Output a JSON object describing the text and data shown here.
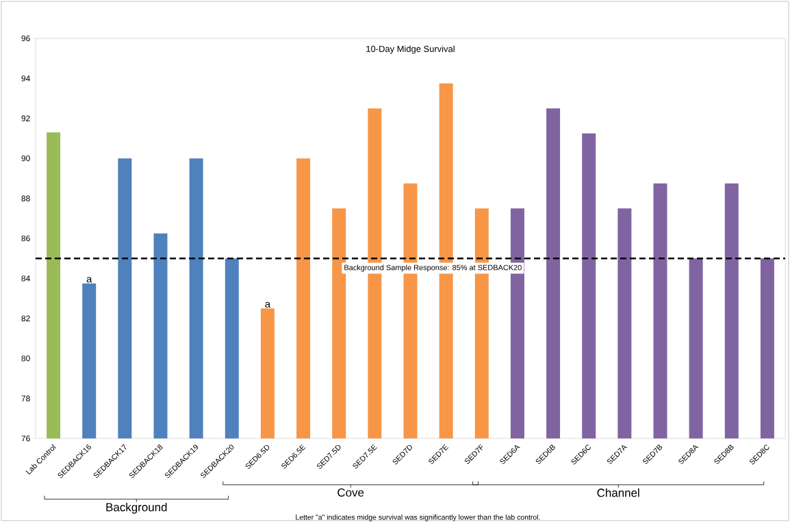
{
  "chart_data": {
    "type": "bar",
    "title": "10-Day Midge Survival",
    "categories": [
      "Lab Control",
      "SEDBACK16",
      "SEDBACK17",
      "SEDBACK18",
      "SEDBACK19",
      "SEDBACK20",
      "SED6.5D",
      "SED6.5E",
      "SED7.5D",
      "SED7.5E",
      "SED7D",
      "SED7E",
      "SED7F",
      "SED6A",
      "SED6B",
      "SED6C",
      "SED7A",
      "SED7B",
      "SED8A",
      "SED8B",
      "SED8C"
    ],
    "values": [
      91.3,
      83.75,
      90,
      86.25,
      90,
      85,
      82.5,
      90,
      87.5,
      92.5,
      88.75,
      93.75,
      87.5,
      87.5,
      92.5,
      91.25,
      87.5,
      88.75,
      85,
      88.75,
      85
    ],
    "colors": [
      "#9bbb59",
      "#4f81bd",
      "#4f81bd",
      "#4f81bd",
      "#4f81bd",
      "#4f81bd",
      "#f79646",
      "#f79646",
      "#f79646",
      "#f79646",
      "#f79646",
      "#f79646",
      "#f79646",
      "#8064a2",
      "#8064a2",
      "#8064a2",
      "#8064a2",
      "#8064a2",
      "#8064a2",
      "#8064a2",
      "#8064a2"
    ],
    "ylim": [
      76,
      96
    ],
    "yticks": [
      76,
      78,
      80,
      82,
      84,
      86,
      88,
      90,
      92,
      94,
      96
    ],
    "ref_lines": [
      {
        "axis": "y",
        "value": 85,
        "label": "Background Sample Response: 85% at SEDBACK20",
        "color": "#000000",
        "line_style": "dashed"
      }
    ],
    "annotations": [
      {
        "text": "a",
        "x": "SEDBACK16",
        "y": 83.75
      },
      {
        "text": "a",
        "x": "SED6.5D",
        "y": 82.5
      },
      "Background",
      "Cove",
      "Channel",
      "Letter \"a\" indicates midge survival was significantly lower than the lab control."
    ]
  }
}
